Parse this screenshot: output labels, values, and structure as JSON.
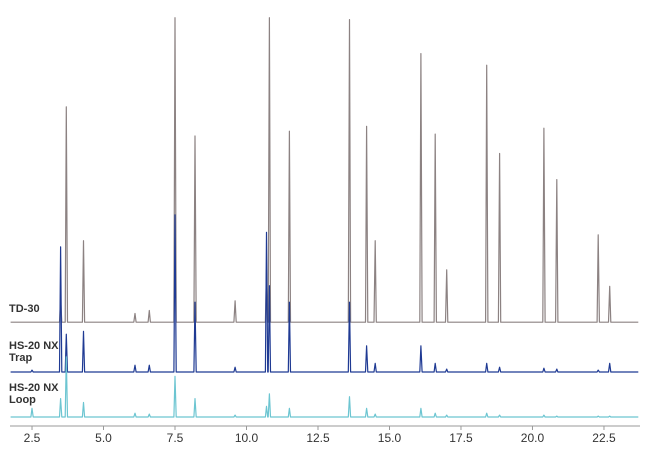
{
  "chart_data": {
    "type": "line",
    "x": [
      1.75,
      2.46,
      2.5,
      2.54,
      3.46,
      3.5,
      3.54,
      3.66,
      3.7,
      3.74,
      4.26,
      4.3,
      4.34,
      6.06,
      6.1,
      6.14,
      6.56,
      6.6,
      6.64,
      7.46,
      7.5,
      7.54,
      8.16,
      8.2,
      8.24,
      9.56,
      9.6,
      9.64,
      10.66,
      10.7,
      10.74,
      10.76,
      10.8,
      10.84,
      11.46,
      11.5,
      11.54,
      13.56,
      13.6,
      13.64,
      14.16,
      14.2,
      14.24,
      14.46,
      14.5,
      14.54,
      16.06,
      16.1,
      16.14,
      16.56,
      16.6,
      16.64,
      16.96,
      17.0,
      17.04,
      18.36,
      18.4,
      18.44,
      18.81,
      18.85,
      18.89,
      20.36,
      20.4,
      20.44,
      20.81,
      20.85,
      20.89,
      22.26,
      22.3,
      22.34,
      22.66,
      22.7,
      22.74,
      23.7
    ],
    "series": [
      {
        "name": "TD-30",
        "color": "#8c8282",
        "values": [
          6,
          6,
          6,
          6,
          6,
          30,
          6,
          6,
          228,
          6,
          6,
          90,
          6,
          6,
          15,
          6,
          6,
          18,
          6,
          6,
          320,
          6,
          6,
          198,
          6,
          6,
          28,
          6,
          6,
          60,
          6,
          6,
          320,
          6,
          6,
          203,
          6,
          6,
          318,
          6,
          6,
          208,
          6,
          6,
          90,
          6,
          6,
          283,
          6,
          6,
          200,
          6,
          6,
          60,
          6,
          6,
          271,
          6,
          6,
          180,
          6,
          6,
          206,
          6,
          6,
          153,
          6,
          6,
          96,
          6,
          6,
          43,
          6,
          6
        ]
      },
      {
        "name": "HS-20 NX Trap",
        "color": "#1f3a93",
        "values": [
          1,
          1,
          3,
          1,
          1,
          130,
          1,
          1,
          40,
          1,
          1,
          43,
          1,
          1,
          8,
          1,
          1,
          8,
          1,
          1,
          163,
          1,
          1,
          73,
          1,
          1,
          6,
          1,
          1,
          145,
          1,
          1,
          90,
          1,
          1,
          73,
          1,
          1,
          73,
          1,
          1,
          28,
          1,
          1,
          10,
          1,
          1,
          28,
          1,
          1,
          10,
          1,
          1,
          4,
          1,
          1,
          10,
          1,
          1,
          6,
          1,
          1,
          5,
          1,
          1,
          4,
          1,
          1,
          3,
          1,
          1,
          10,
          1,
          1
        ]
      },
      {
        "name": "HS-20 NX Loop",
        "color": "#6cc5d1",
        "values": [
          1,
          1,
          10,
          1,
          1,
          20,
          1,
          1,
          63,
          1,
          1,
          16,
          1,
          1,
          5,
          1,
          1,
          4,
          1,
          1,
          43,
          1,
          1,
          20,
          1,
          1,
          3,
          1,
          1,
          12,
          1,
          1,
          25,
          1,
          1,
          10,
          1,
          1,
          22,
          1,
          1,
          10,
          1,
          1,
          4,
          1,
          1,
          10,
          1,
          1,
          5,
          1,
          1,
          3,
          1,
          1,
          5,
          1,
          1,
          3,
          1,
          1,
          3,
          1,
          1,
          2,
          1,
          1,
          2,
          1,
          1,
          2,
          1,
          1
        ]
      }
    ],
    "xlim": [
      1.73,
      23.76
    ],
    "xticks": [
      2.5,
      {
        "value": 5,
        "label": "5.0"
      },
      7.5,
      {
        "value": 10,
        "label": "10.0"
      },
      12.5,
      {
        "value": 15,
        "label": "15.0"
      },
      17.5,
      {
        "value": 20,
        "label": "20.0"
      },
      22.5
    ],
    "ylim": [
      0,
      330
    ]
  }
}
